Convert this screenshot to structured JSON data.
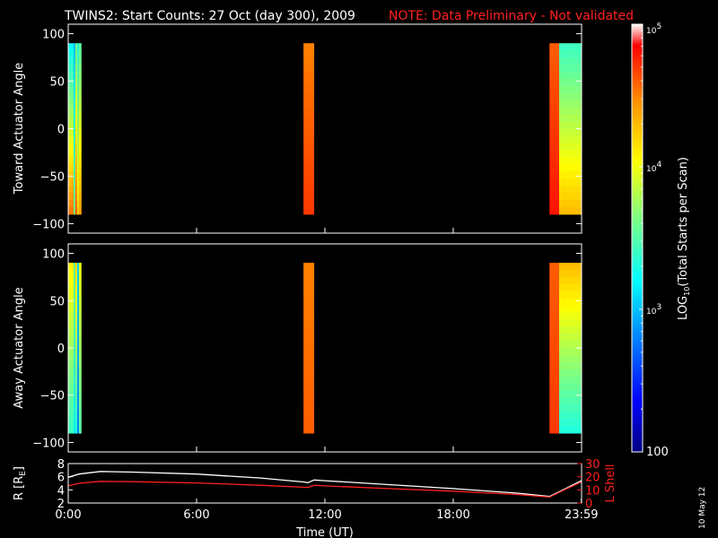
{
  "chart_data": [
    {
      "type": "heatmap",
      "title": "TWINS2: Start Counts: 27 Oct (day 300), 2009",
      "note": "NOTE: Data Preliminary - Not validated",
      "ylabel": "Toward Actuator Angle",
      "ylim": [
        -110,
        110
      ],
      "yticks": [
        "100",
        "50",
        "0",
        "−50",
        "−100"
      ],
      "ytick_values": [
        100,
        50,
        0,
        -50,
        -100
      ],
      "x_range_hours": [
        0,
        24
      ],
      "bands": [
        {
          "start": 0.0,
          "end": 0.25,
          "top_log": 3.2,
          "bottom_log": 4.55
        },
        {
          "start": 0.25,
          "end": 0.33,
          "top_log": 3.0,
          "bottom_log": 3.6
        },
        {
          "start": 0.33,
          "end": 0.42,
          "top_log": 3.55,
          "bottom_log": 4.6
        },
        {
          "start": 0.42,
          "end": 0.5,
          "top_log": 3.3,
          "bottom_log": 4.2
        },
        {
          "start": 0.5,
          "end": 0.62,
          "top_log": 3.5,
          "bottom_log": 4.4
        },
        {
          "start": 11.0,
          "end": 11.5,
          "top_log": 4.5,
          "bottom_log": 4.7
        },
        {
          "start": 22.5,
          "end": 22.95,
          "top_log": 4.6,
          "bottom_log": 4.8
        },
        {
          "start": 22.95,
          "end": 23.99,
          "top_log": 3.4,
          "bottom_log": 4.3
        }
      ]
    },
    {
      "type": "heatmap",
      "ylabel": "Away Actuator Angle",
      "ylim": [
        -110,
        110
      ],
      "yticks": [
        "100",
        "50",
        "0",
        "−50",
        "−100"
      ],
      "ytick_values": [
        100,
        50,
        0,
        -50,
        -100
      ],
      "x_range_hours": [
        0,
        24
      ],
      "bands": [
        {
          "start": 0.0,
          "end": 0.25,
          "top_log": 4.1,
          "bottom_log": 3.4
        },
        {
          "start": 0.25,
          "end": 0.33,
          "top_log": 3.6,
          "bottom_log": 3.2
        },
        {
          "start": 0.33,
          "end": 0.42,
          "top_log": 4.2,
          "bottom_log": 3.3
        },
        {
          "start": 0.42,
          "end": 0.5,
          "top_log": 3.1,
          "bottom_log": 2.8
        },
        {
          "start": 0.5,
          "end": 0.62,
          "top_log": 4.0,
          "bottom_log": 3.5
        },
        {
          "start": 11.0,
          "end": 11.5,
          "top_log": 4.5,
          "bottom_log": 4.6
        },
        {
          "start": 22.5,
          "end": 22.95,
          "top_log": 4.6,
          "bottom_log": 4.7
        },
        {
          "start": 22.95,
          "end": 23.99,
          "top_log": 4.3,
          "bottom_log": 3.3
        }
      ]
    },
    {
      "type": "line",
      "ylabel": "R [RE]",
      "ylabel_base": "R [R",
      "ylabel_sub": "E",
      "ylabel_end": "]",
      "ylim": [
        2,
        8
      ],
      "yticks": [
        "8",
        "6",
        "4",
        "2"
      ],
      "ytick_values": [
        8,
        6,
        4,
        2
      ],
      "y2label": "L Shell",
      "y2lim": [
        0,
        30
      ],
      "y2ticks": [
        "30",
        "20",
        "10",
        "0"
      ],
      "y2tick_values": [
        30,
        20,
        10,
        0
      ],
      "xlabel": "Time (UT)",
      "xticks": [
        "0:00",
        "6:00",
        "12:00",
        "18:00",
        "23:59"
      ],
      "xtick_values": [
        0,
        6,
        12,
        18,
        23.99
      ],
      "series": [
        {
          "color": "#ffffff",
          "x": [
            0,
            0.5,
            1.5,
            3,
            6,
            9,
            11.0,
            11.2,
            11.5,
            12,
            15,
            18,
            21,
            22.5,
            23.2,
            23.99
          ],
          "y": [
            5.9,
            6.4,
            6.8,
            6.7,
            6.4,
            5.8,
            5.2,
            5.1,
            5.5,
            5.4,
            4.8,
            4.2,
            3.5,
            3.0,
            4.1,
            5.4
          ]
        },
        {
          "color": "#ff2020",
          "axis": "y2",
          "x": [
            0,
            0.5,
            1.5,
            3,
            6,
            9,
            11.0,
            11.2,
            11.5,
            12,
            15,
            18,
            21,
            22.5,
            23.2,
            23.99
          ],
          "y": [
            13,
            15,
            16.5,
            16.2,
            15.3,
            13.5,
            12,
            11.8,
            13.5,
            13,
            11,
            9,
            6.5,
            4.5,
            10,
            16
          ]
        }
      ]
    },
    {
      "type": "heatmap",
      "label_base": "LOG",
      "label_sub": "10",
      "label_rest": "(Total Starts per Scan)",
      "scale": "log",
      "range": [
        100,
        100000
      ],
      "tick_labels": [
        {
          "value": 100000,
          "base": "10",
          "exp": "5"
        },
        {
          "value": 10000,
          "base": "10",
          "exp": "4"
        },
        {
          "value": 1000,
          "base": "10",
          "exp": "3"
        },
        {
          "value": 100,
          "text": "100"
        }
      ]
    }
  ],
  "stamp": "10 May 12"
}
